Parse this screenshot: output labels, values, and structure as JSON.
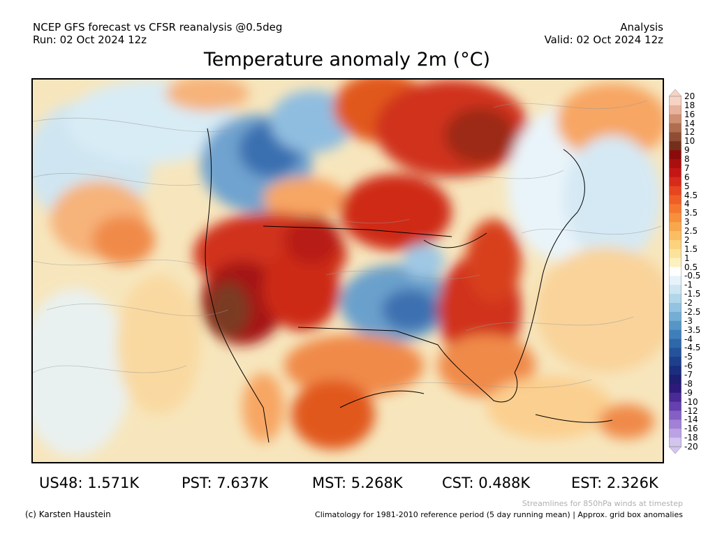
{
  "header": {
    "left_line1": "NCEP GFS forecast vs CFSR reanalysis @0.5deg",
    "left_line2": "Run: 02 Oct 2024 12z",
    "right_line1": "Analysis",
    "right_line2": "Valid: 02 Oct 2024 12z"
  },
  "title": "Temperature anomaly 2m (°C)",
  "colorbar": {
    "labels": [
      "20",
      "18",
      "16",
      "14",
      "12",
      "10",
      "9",
      "8",
      "7",
      "6",
      "5",
      "4.5",
      "4",
      "3.5",
      "3",
      "2.5",
      "2",
      "1.5",
      "1",
      "0.5",
      "-0.5",
      "-1",
      "-1.5",
      "-2",
      "-2.5",
      "-3",
      "-3.5",
      "-4",
      "-4.5",
      "-5",
      "-6",
      "-7",
      "-8",
      "-9",
      "-10",
      "-12",
      "-14",
      "-16",
      "-18",
      "-20"
    ],
    "colors": [
      "#f6d3c2",
      "#e8b39c",
      "#cf8f73",
      "#b06d50",
      "#8f4e34",
      "#742f1c",
      "#8b0b0b",
      "#a90f0f",
      "#c41616",
      "#d62a1a",
      "#e6451f",
      "#ef5e27",
      "#f5772f",
      "#f78f3b",
      "#f9a74c",
      "#fbbd63",
      "#fcd27d",
      "#fde39a",
      "#fef1c0",
      "#ffffff",
      "#e6f3fa",
      "#cde6f2",
      "#b1d6ea",
      "#93c3e0",
      "#74aed4",
      "#5696c7",
      "#3f7fb9",
      "#2e68aa",
      "#24539b",
      "#1d3f8c",
      "#1a2d7e",
      "#1e1e72",
      "#2d1a7a",
      "#4a2a94",
      "#6640ae",
      "#8560c4",
      "#a180d6",
      "#bba2e4",
      "#d3c4f0"
    ]
  },
  "stats": [
    {
      "label": "US48",
      "value": "1.571K"
    },
    {
      "label": "PST",
      "value": "7.637K"
    },
    {
      "label": "MST",
      "value": "5.268K"
    },
    {
      "label": "CST",
      "value": "0.488K"
    },
    {
      "label": "EST",
      "value": "2.326K"
    }
  ],
  "footer": {
    "streamlines_note": "Streamlines for 850hPa winds at timestep",
    "copyright": "(c) Karsten Haustein",
    "climatology": "Climatology for 1981-2010 reference period (5 day running mean) | Approx. grid box anomalies"
  }
}
